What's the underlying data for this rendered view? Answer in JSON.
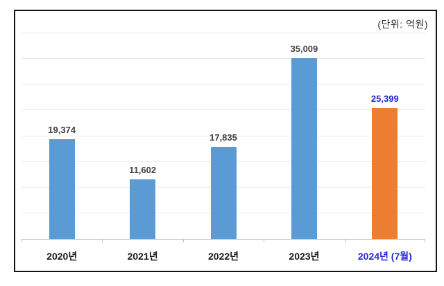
{
  "chart_data": {
    "type": "bar",
    "title": "",
    "unit_label": "(단위: 억원)",
    "categories": [
      "2020년",
      "2021년",
      "2022년",
      "2023년",
      "2024년 (7월)"
    ],
    "values": [
      19374,
      11602,
      17835,
      35009,
      25399
    ],
    "value_labels": [
      "19,374",
      "11,602",
      "17,835",
      "35,009",
      "25,399"
    ],
    "bar_colors": [
      "#5B9BD5",
      "#5B9BD5",
      "#5B9BD5",
      "#5B9BD5",
      "#ED7D31"
    ],
    "value_label_colors": [
      "#404040",
      "#404040",
      "#404040",
      "#404040",
      "#2727D2"
    ],
    "category_label_colors": [
      "#1a1a1a",
      "#1a1a1a",
      "#1a1a1a",
      "#1a1a1a",
      "#2727D2"
    ],
    "highlighted_category": "2024년 (7월)",
    "xlabel": "",
    "ylabel": "",
    "ylim": [
      0,
      40000
    ],
    "gridline_step": 5000,
    "grid": true,
    "legend_position": "none",
    "colors": {
      "bar_blue": "#5B9BD5",
      "bar_orange": "#ED7D31",
      "highlight_text_blue": "#2727D2",
      "value_label_gray": "#404040",
      "gridline": "#E9E9E9",
      "axis_line": "#BFBFBF",
      "frame_border": "#121212",
      "background": "#FFFFFF"
    }
  }
}
